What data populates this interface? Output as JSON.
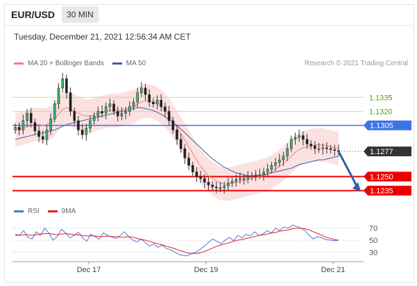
{
  "header": {
    "symbol": "EUR/USD",
    "timeframe": "30 MIN"
  },
  "datetime": "Tuesday, December 21, 2021 12:56:34 AM CET",
  "legend": {
    "ma20_label": "MA 20 + Bollinger Bands",
    "ma20_color": "#f08080",
    "ma50_label": "MA 50",
    "ma50_color": "#3a5fa8"
  },
  "credit": "Research © 2021 Trading Central",
  "rsi_legend": {
    "rsi_label": "RSI",
    "rsi_color": "#4f73d9",
    "ma_label": "9MA",
    "ma_color": "#e02020"
  },
  "chart_data": [
    {
      "type": "candlestick",
      "title": "EUR/USD",
      "timeframe": "30 MIN",
      "x_ticks": [
        "Dec 17",
        "Dec 19",
        "Dec 21"
      ],
      "ylim": [
        1.1225,
        1.1365
      ],
      "levels": [
        {
          "value": 1.1335,
          "label": "1.1335",
          "kind": "resistance",
          "color": "#8bc34a"
        },
        {
          "value": 1.132,
          "label": "1.1320",
          "kind": "resistance",
          "color": "#8bc34a"
        },
        {
          "value": 1.1305,
          "label": "1.1305",
          "kind": "pivot",
          "color": "#3e73e8"
        },
        {
          "value": 1.1277,
          "label": "1.1277",
          "kind": "last-price",
          "color": "#333333"
        },
        {
          "value": 1.125,
          "label": "1.1250",
          "kind": "support",
          "color": "#ee0000"
        },
        {
          "value": 1.1235,
          "label": "1.1235",
          "kind": "support",
          "color": "#ee0000"
        }
      ],
      "close": [
        1.1303,
        1.13,
        1.131,
        1.1318,
        1.1308,
        1.1299,
        1.1293,
        1.129,
        1.13,
        1.1312,
        1.1328,
        1.1345,
        1.1355,
        1.134,
        1.132,
        1.131,
        1.13,
        1.1295,
        1.1302,
        1.131,
        1.1315,
        1.132,
        1.1318,
        1.1325,
        1.1328,
        1.132,
        1.1315,
        1.1318,
        1.132,
        1.1325,
        1.133,
        1.134,
        1.1345,
        1.1338,
        1.133,
        1.1328,
        1.1332,
        1.1325,
        1.132,
        1.131,
        1.13,
        1.129,
        1.128,
        1.127,
        1.1262,
        1.1255,
        1.125,
        1.1248,
        1.1244,
        1.1241,
        1.1239,
        1.1238,
        1.1238,
        1.124,
        1.1243,
        1.1245,
        1.1247,
        1.1248,
        1.1248,
        1.125,
        1.1251,
        1.1252,
        1.1252,
        1.1255,
        1.1258,
        1.1262,
        1.1265,
        1.1268,
        1.1272,
        1.128,
        1.129,
        1.1292,
        1.1294,
        1.129,
        1.1285,
        1.1283,
        1.128,
        1.128,
        1.1281,
        1.128,
        1.1279,
        1.1278,
        1.1277
      ],
      "ma20": [
        1.13,
        1.1301,
        1.1302,
        1.1303,
        1.1305,
        1.1306,
        1.1306,
        1.1305,
        1.1306,
        1.1308,
        1.1312,
        1.1317,
        1.1322,
        1.1324,
        1.1322,
        1.132,
        1.1318,
        1.1316,
        1.1315,
        1.1315,
        1.1316,
        1.1318,
        1.1319,
        1.132,
        1.1321,
        1.1321,
        1.1321,
        1.1322,
        1.1323,
        1.1324,
        1.1325,
        1.1328,
        1.133,
        1.1331,
        1.1331,
        1.133,
        1.1328,
        1.1325,
        1.1321,
        1.1316,
        1.131,
        1.1303,
        1.1296,
        1.1289,
        1.1282,
        1.1275,
        1.1268,
        1.1261,
        1.1256,
        1.1251,
        1.1248,
        1.1245,
        1.1243,
        1.1242,
        1.1242,
        1.1243,
        1.1244,
        1.1245,
        1.1246,
        1.1247,
        1.1248,
        1.1249,
        1.125,
        1.1251,
        1.1253,
        1.1255,
        1.1258,
        1.1261,
        1.1264,
        1.1268,
        1.1272,
        1.1276,
        1.1279,
        1.1281,
        1.1282,
        1.1283,
        1.1284,
        1.1284,
        1.1284,
        1.1283,
        1.1282,
        1.1281,
        1.128
      ],
      "band_width": 0.0018,
      "ma50": [
        1.129,
        1.1291,
        1.1292,
        1.1293,
        1.1294,
        1.1295,
        1.1296,
        1.1297,
        1.1298,
        1.1299,
        1.13,
        1.1302,
        1.1304,
        1.1306,
        1.1307,
        1.1308,
        1.1309,
        1.131,
        1.1311,
        1.1312,
        1.1313,
        1.1314,
        1.1315,
        1.1316,
        1.1317,
        1.1318,
        1.1319,
        1.132,
        1.1321,
        1.1322,
        1.1323,
        1.1324,
        1.1324,
        1.1323,
        1.1322,
        1.1321,
        1.1319,
        1.1317,
        1.1314,
        1.1311,
        1.1308,
        1.1305,
        1.1301,
        1.1297,
        1.1293,
        1.1289,
        1.1285,
        1.1281,
        1.1277,
        1.1273,
        1.1269,
        1.1266,
        1.1263,
        1.126,
        1.1258,
        1.1256,
        1.1254,
        1.1253,
        1.1252,
        1.1251,
        1.1251,
        1.1251,
        1.1251,
        1.1252,
        1.1253,
        1.1254,
        1.1255,
        1.1256,
        1.1257,
        1.1258,
        1.1259,
        1.1261,
        1.1263,
        1.1264,
        1.1265,
        1.1266,
        1.1267,
        1.1268,
        1.1268,
        1.1269,
        1.127,
        1.1271,
        1.1272
      ],
      "forecast_arrow": {
        "from": 1.1277,
        "to": 1.1235
      }
    },
    {
      "type": "line",
      "title": "RSI",
      "ylim": [
        20,
        80
      ],
      "y_ticks": [
        70,
        50,
        30
      ],
      "series": [
        {
          "name": "RSI",
          "values": [
            60,
            58,
            66,
            55,
            52,
            64,
            58,
            70,
            62,
            50,
            56,
            68,
            62,
            54,
            58,
            63,
            55,
            48,
            60,
            56,
            52,
            62,
            58,
            55,
            53,
            58,
            64,
            56,
            50,
            47,
            52,
            46,
            40,
            44,
            38,
            42,
            36,
            34,
            30,
            26,
            25,
            24,
            28,
            30,
            35,
            40,
            46,
            52,
            48,
            44,
            50,
            55,
            49,
            58,
            54,
            60,
            57,
            64,
            58,
            60,
            66,
            62,
            70,
            66,
            72,
            70,
            75,
            73,
            70,
            66,
            58,
            52,
            56,
            54,
            51,
            50,
            49,
            50
          ]
        },
        {
          "name": "9MA",
          "values": [
            58,
            58,
            59,
            59,
            58,
            59,
            60,
            61,
            61,
            60,
            59,
            60,
            61,
            60,
            59,
            59,
            58,
            57,
            57,
            57,
            56,
            56,
            57,
            56,
            56,
            55,
            55,
            56,
            55,
            53,
            51,
            50,
            48,
            46,
            44,
            42,
            40,
            38,
            36,
            33,
            31,
            29,
            28,
            28,
            29,
            31,
            34,
            37,
            40,
            42,
            44,
            46,
            48,
            50,
            51,
            53,
            54,
            56,
            58,
            59,
            60,
            62,
            63,
            65,
            66,
            67,
            69,
            70,
            70,
            69,
            67,
            64,
            61,
            58,
            55,
            53,
            51,
            50
          ]
        }
      ]
    }
  ]
}
